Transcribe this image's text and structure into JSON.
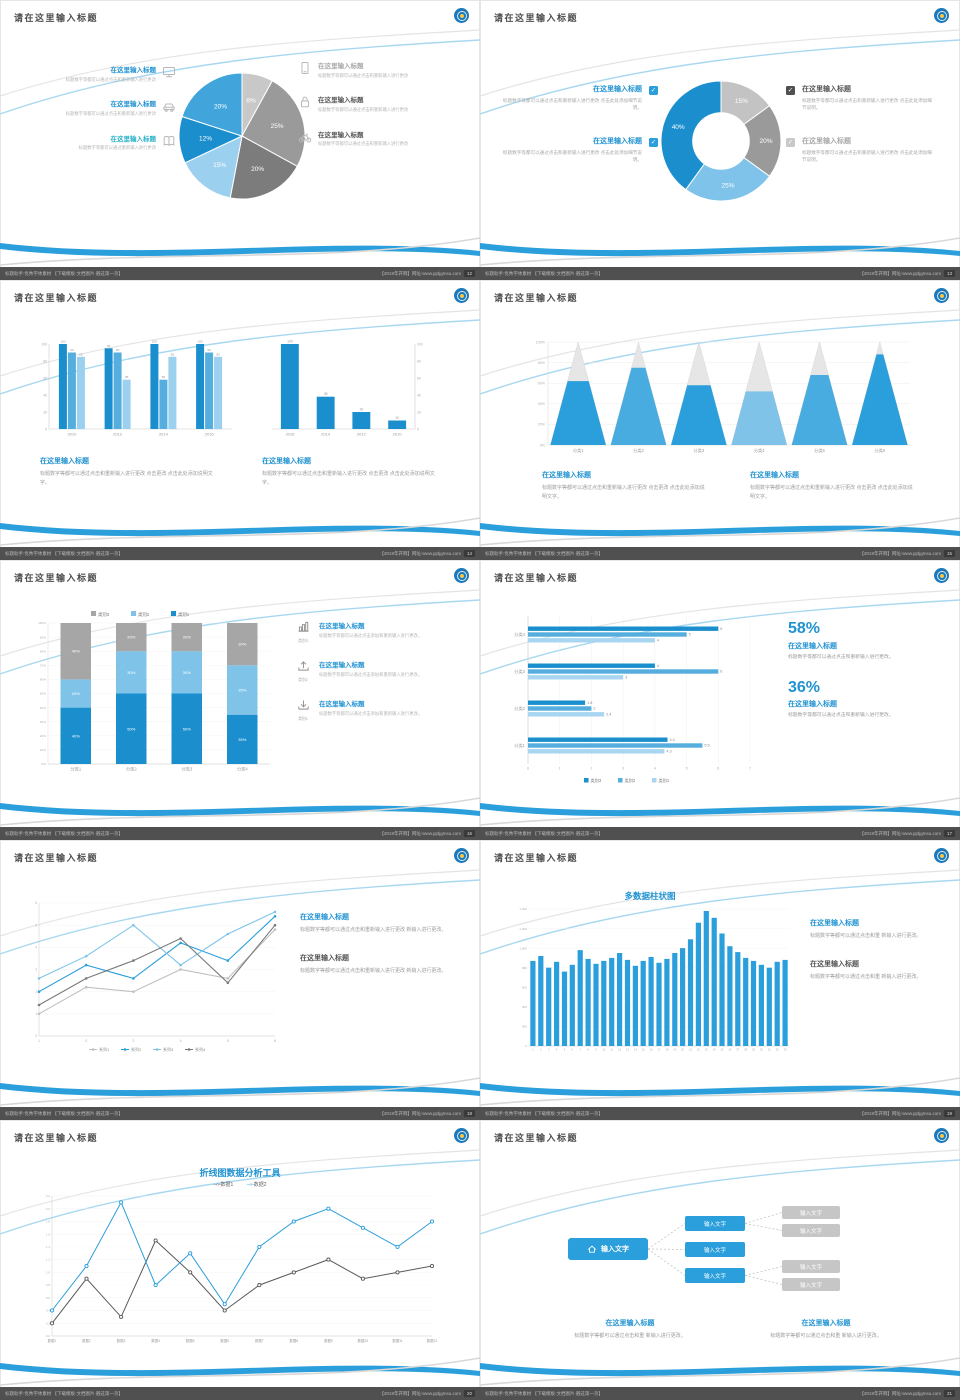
{
  "common": {
    "slide_title": "请在这里输入标题",
    "footer_left": "标题助手:优秀字体素材 【下载模板·文档图片·戳这第一页】",
    "footer_right": "【2019年开网】网址:www.pptjgmsu.com",
    "accent_blue": "#2293d2",
    "light_blue": "#7fc4e8",
    "gray": "#a6a6a6"
  },
  "slides": [
    {
      "page": "12",
      "left_items": [
        {
          "icon": "monitor",
          "title": "在这里输入标题",
          "body": "标题数字等都可以通过点击和重新输入进行更改"
        },
        {
          "icon": "car",
          "title": "在这里输入标题",
          "body": "标题数字等都可以通过点击和重新输入进行更改"
        },
        {
          "icon": "book",
          "title": "在这里输入标题",
          "body": "标题数字等都可以通过重新输入进行更改"
        }
      ],
      "right_items": [
        {
          "icon": "phone",
          "title": "在这里输入标题",
          "body": "标题数字等都可以通过点击和重新输入进行更改"
        },
        {
          "icon": "lock",
          "title": "在这里输入标题",
          "body": "标题数字等都可以通过点击和重新输入进行更改"
        },
        {
          "icon": "bike",
          "title": "在这里输入标题",
          "body": "标题数字等都可以通过点击和重新输入进行更改"
        }
      ],
      "chart_data": {
        "type": "pie",
        "slices": [
          {
            "label": "8%",
            "value": 8,
            "color": "#c8c8c8"
          },
          {
            "label": "25%",
            "value": 25,
            "color": "#9a9a9a"
          },
          {
            "label": "20%",
            "value": 20,
            "color": "#7c7c7c"
          },
          {
            "label": "15%",
            "value": 15,
            "color": "#9bd0ee"
          },
          {
            "label": "12%",
            "value": 12,
            "color": "#1b8fce"
          },
          {
            "label": "20%",
            "value": 20,
            "color": "#41a5dc"
          }
        ]
      }
    },
    {
      "page": "13",
      "left_items": [
        {
          "icon": "check",
          "title": "在这里输入标题",
          "body": "标题数字等都可以通过点击和重新输入进行更改 点击此处添加细节说明。"
        },
        {
          "icon": "check",
          "title": "在这里输入标题",
          "body": "标题数字等都可以通过点击和重新输入进行更改 点击此处添加细节说明。"
        }
      ],
      "right_items": [
        {
          "icon": "check",
          "title": "在这里输入标题",
          "body": "标题数字等都可以通过点击和重新输入进行更改 点击此处添加细节说明。"
        },
        {
          "icon": "check",
          "title": "在这里输入标题",
          "body": "标题数字等都可以通过点击和重新输入进行更改 点击此处添加细节说明。"
        }
      ],
      "chart_data": {
        "type": "donut",
        "slices": [
          {
            "label": "15%",
            "value": 15,
            "color": "#c3c3c3"
          },
          {
            "label": "20%",
            "value": 20,
            "color": "#9a9a9a"
          },
          {
            "label": "25%",
            "value": 25,
            "color": "#7fc3ea"
          },
          {
            "label": "40%",
            "value": 40,
            "color": "#1b8fce"
          }
        ]
      }
    },
    {
      "page": "14",
      "blocks": [
        {
          "title": "在这里输入标题",
          "body": "标题数字等都可以通过点击和重新输入进行更改 点击更改 点击此处添加说明文字。"
        },
        {
          "title": "在这里输入标题",
          "body": "标题数字等都可以通过点击和重新输入进行更改 点击更改 点击此处添加说明文字。"
        }
      ],
      "chart_data": [
        {
          "type": "bar-grouped",
          "categories": [
            "2010",
            "2012",
            "2014",
            "2016"
          ],
          "series": [
            {
              "name": "系列1",
              "color": "#1b8fce",
              "values": [
                100,
                95,
                100,
                100
              ]
            },
            {
              "name": "系列2",
              "color": "#55aede",
              "values": [
                90,
                90,
                58,
                90
              ]
            },
            {
              "name": "系列3",
              "color": "#9bd0ee",
              "values": [
                85,
                58,
                85,
                85
              ]
            }
          ],
          "ylim": [
            0,
            100
          ],
          "ytick_step": 20
        },
        {
          "type": "bar",
          "categories": [
            "2016",
            "2014",
            "2012",
            "2010"
          ],
          "values": [
            100,
            38,
            20,
            10
          ],
          "color": "#1b8fce",
          "ylim": [
            0,
            100
          ],
          "ytick_step": 20,
          "axis_side": "right"
        }
      ]
    },
    {
      "page": "15",
      "blocks": [
        {
          "title": "在这里输入标题",
          "body": "标题数字等都可以通过点击和重新输入进行更改 点击更改 点击此处添加说明文字。"
        },
        {
          "title": "在这里输入标题",
          "body": "标题数字等都可以通过点击和重新输入进行更改 点击更改 点击此处添加说明文字。"
        }
      ],
      "chart_data": {
        "type": "cone",
        "categories": [
          "分类1",
          "分类2",
          "分类3",
          "分类4",
          "分类5",
          "分类6"
        ],
        "values": [
          62,
          75,
          58,
          52,
          68,
          88
        ],
        "colors": [
          "#2b9fdb",
          "#49ace0",
          "#2b9fdb",
          "#7fc4e8",
          "#49ace0",
          "#2b9fdb"
        ],
        "ylim": [
          0,
          100
        ],
        "ytick_step": 20
      }
    },
    {
      "page": "16",
      "right_items": [
        {
          "icon": "chart-bars",
          "caption": "类别3",
          "title": "在这里输入标题",
          "body": "标题数字等都可以通过点击添加和重新输入进行更改。"
        },
        {
          "icon": "upload",
          "caption": "类别2",
          "title": "在这里输入标题",
          "body": "标题数字等都可以通过点击添加和重新输入进行更改。"
        },
        {
          "icon": "download",
          "caption": "类别1",
          "title": "在这里输入标题",
          "body": "标题数字等都可以通过点击添加和重新输入进行更改。"
        }
      ],
      "chart_data": {
        "type": "stacked-bar",
        "categories": [
          "分类1",
          "分类2",
          "分类3",
          "分类4"
        ],
        "series": [
          {
            "name": "类别1",
            "color": "#1b8fce",
            "values": [
              40,
              50,
              50,
              35
            ]
          },
          {
            "name": "类别2",
            "color": "#7fc4e8",
            "values": [
              20,
              30,
              30,
              35
            ]
          },
          {
            "name": "类别3",
            "color": "#a6a6a6",
            "values": [
              40,
              20,
              20,
              30
            ]
          }
        ],
        "ylim": [
          0,
          100
        ],
        "ytick_step": 10
      }
    },
    {
      "page": "17",
      "stats": [
        {
          "value": "58%",
          "title": "在这里输入标题",
          "body": "标题数字等都可以通过点击和重新输入进行更改。"
        },
        {
          "value": "36%",
          "title": "在这里输入标题",
          "body": "标题数字等都可以通过点击和重新输入进行更改。"
        }
      ],
      "chart_data": {
        "type": "hbar",
        "categories": [
          "分类4",
          "分类3",
          "分类2",
          "分类1"
        ],
        "series": [
          {
            "name": "类别3",
            "color": "#1b8fce",
            "values": [
              6,
              4,
              1.8,
              4.4
            ]
          },
          {
            "name": "类别2",
            "color": "#55aede",
            "values": [
              5,
              6,
              2,
              5.5
            ]
          },
          {
            "name": "类别1",
            "color": "#a8d6f0",
            "values": [
              4,
              3,
              2.4,
              4.3
            ]
          }
        ],
        "xlim": [
          0,
          7
        ],
        "xtick_step": 1
      }
    },
    {
      "page": "18",
      "blocks": [
        {
          "title": "在这里输入标题",
          "body": "标题数字等都可以通过点击和重新输入进行更改 新输入进行更改。",
          "tone": "blue"
        },
        {
          "title": "在这里输入标题",
          "body": "标题数字等都可以通过点击和重新输入进行更改 新输入进行更改。",
          "tone": "dark"
        }
      ],
      "chart_data": {
        "type": "line",
        "x": [
          "1",
          "2",
          "3",
          "4",
          "5",
          "6"
        ],
        "series": [
          {
            "name": "系列1",
            "color": "#c0c0c0",
            "values": [
              1.0,
              2.2,
              2.0,
              3.0,
              2.6,
              4.8
            ]
          },
          {
            "name": "系列2",
            "color": "#2b9fdb",
            "values": [
              2.0,
              3.2,
              2.6,
              4.2,
              3.4,
              5.4
            ]
          },
          {
            "name": "系列3",
            "color": "#7fc4e8",
            "values": [
              2.6,
              3.6,
              5.0,
              3.2,
              4.6,
              5.6
            ]
          },
          {
            "name": "系列4",
            "color": "#7a7a7a",
            "values": [
              1.4,
              2.6,
              3.4,
              4.4,
              2.4,
              5.0
            ]
          }
        ],
        "ylim": [
          0,
          6
        ],
        "ytick_step": 1
      }
    },
    {
      "page": "19",
      "chart_title": "多数据柱状图",
      "blocks": [
        {
          "title": "在这里输入标题",
          "body": "标题数字等都可以通过点击和重 新输入进行更改。",
          "tone": "blue"
        },
        {
          "title": "在这里输入标题",
          "body": "标题数字等都可以通过点击和重 新输入进行更改。",
          "tone": "dark"
        }
      ],
      "chart_data": {
        "type": "column",
        "x_labels": [
          "1",
          "2",
          "3",
          "4",
          "5",
          "6",
          "7",
          "8",
          "9",
          "10",
          "11",
          "12",
          "13",
          "14",
          "15",
          "16",
          "17",
          "18",
          "19",
          "20",
          "21",
          "22",
          "23",
          "24",
          "25",
          "26",
          "27",
          "28",
          "29",
          "30",
          "31",
          "32",
          "33"
        ],
        "values": [
          870,
          920,
          800,
          860,
          760,
          830,
          980,
          890,
          840,
          870,
          900,
          950,
          880,
          820,
          870,
          910,
          850,
          890,
          950,
          1000,
          1090,
          1260,
          1380,
          1310,
          1150,
          1020,
          960,
          900,
          870,
          830,
          800,
          860,
          880
        ],
        "color": "#2b9fdb",
        "ylim": [
          0,
          1400
        ],
        "ytick_step": 200
      }
    },
    {
      "page": "20",
      "chart_title": "折线图数据分析工具",
      "chart_data": {
        "type": "line2",
        "x_labels": [
          "数据1",
          "数据2",
          "数据3",
          "数据4",
          "数据5",
          "数据6",
          "数据7",
          "数据8",
          "数据9",
          "数据10",
          "数据11",
          "数据12"
        ],
        "series": [
          {
            "name": "数据1",
            "color": "#595959",
            "values": [
              0.2,
              0.9,
              0.3,
              1.5,
              1.0,
              0.4,
              0.8,
              1.0,
              1.2,
              0.9,
              1.0,
              1.1
            ]
          },
          {
            "name": "数据2",
            "color": "#2b9fdb",
            "values": [
              0.4,
              1.1,
              2.1,
              0.8,
              1.3,
              0.5,
              1.4,
              1.8,
              2.0,
              1.7,
              1.4,
              1.8
            ]
          }
        ],
        "ylim": [
          0,
          2.2
        ],
        "ytick_step": 0.2
      }
    },
    {
      "page": "21",
      "diagram": {
        "root_label": "输入文字",
        "mid_boxes": [
          "输入文字",
          "输入文字",
          "输入文字"
        ],
        "leaf_boxes": [
          "输入文字",
          "输入文字",
          "输入文字",
          "输入文字"
        ]
      },
      "blocks": [
        {
          "title": "在这里输入标题",
          "body": "标题数字等都可以通过点击和重 新输入进行更改。"
        },
        {
          "title": "在这里输入标题",
          "body": "标题数字等都可以通过点击和重 新输入进行更改。"
        }
      ]
    }
  ]
}
